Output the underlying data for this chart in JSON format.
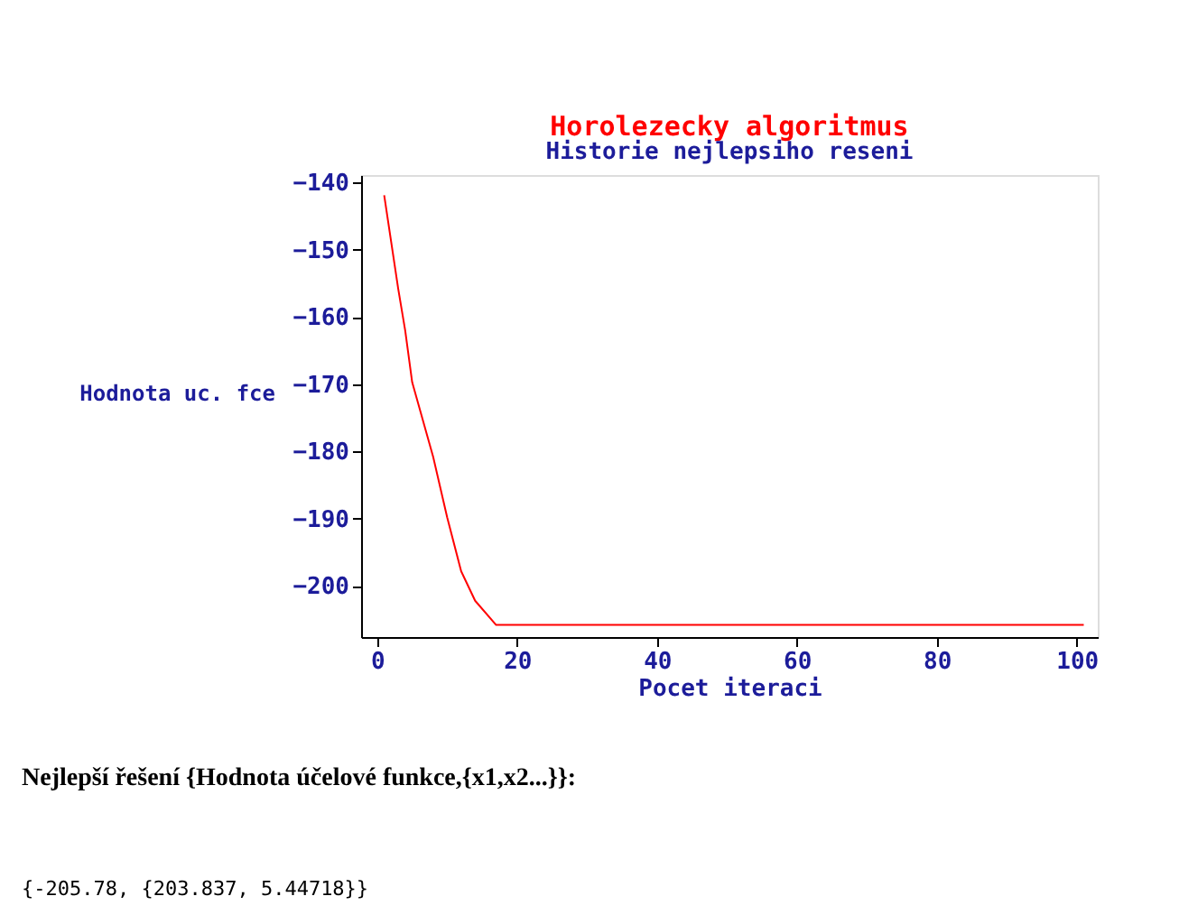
{
  "chart_data": {
    "type": "line",
    "title": "Horolezecky  algoritmus",
    "subtitle": "Historie nejlepsiho reseni",
    "xlabel": "Pocet  iteraci",
    "ylabel": "Hodnota uc. fce",
    "x": [
      1,
      3,
      4,
      5,
      8,
      10,
      12,
      14,
      17,
      101
    ],
    "series": [
      {
        "color": "#ff0000",
        "values": [
          -141.9,
          -155.8,
          -162,
          -169.7,
          -180.8,
          -189.8,
          -197.8,
          -202.2,
          -205.8,
          -205.8
        ]
      }
    ],
    "xlim": [
      -2.3,
      103
    ],
    "xticks": [
      0,
      20,
      40,
      60,
      80,
      100
    ],
    "ylim": [
      -207.6,
      -138.9
    ],
    "yticks": [
      -200,
      -190,
      -180,
      -170,
      -160,
      -150,
      -140
    ],
    "grid": false,
    "legend": false,
    "marker": "none",
    "line_style": "solid",
    "annotations": [
      "Nejlepší řešení {Hodnota účelové funkce,{x1,x2...}}:",
      "{-205.78, {203.837, 5.44718}}"
    ]
  }
}
